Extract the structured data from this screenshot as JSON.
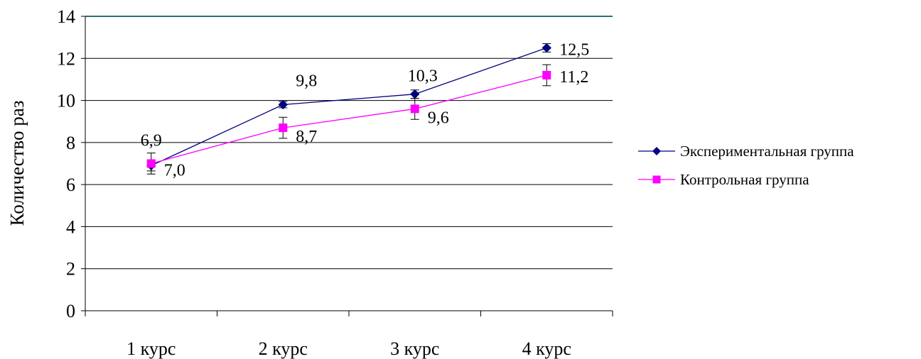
{
  "chart_data": {
    "type": "line",
    "categories": [
      "1 курс",
      "2 курс",
      "3 курс",
      "4 курс"
    ],
    "ylabel": "Количество раз",
    "ylim": [
      0,
      14
    ],
    "yticks": [
      0,
      2,
      4,
      6,
      8,
      10,
      12,
      14
    ],
    "grid": true,
    "legend_position": "right",
    "series": [
      {
        "name": "Экспериментальная группа",
        "values": [
          6.9,
          9.8,
          10.3,
          12.5
        ],
        "labels": [
          "6,9",
          "9,8",
          "10,3",
          "12,5"
        ],
        "error": [
          0.25,
          0.15,
          0.2,
          0.2
        ],
        "color": "#000080",
        "marker": "diamond"
      },
      {
        "name": "Контрольная группа",
        "values": [
          7.0,
          8.7,
          9.6,
          11.2
        ],
        "labels": [
          "7,0",
          "8,7",
          "9,6",
          "11,2"
        ],
        "error": [
          0.5,
          0.5,
          0.5,
          0.5
        ],
        "color": "#ff00ff",
        "marker": "square"
      }
    ]
  }
}
